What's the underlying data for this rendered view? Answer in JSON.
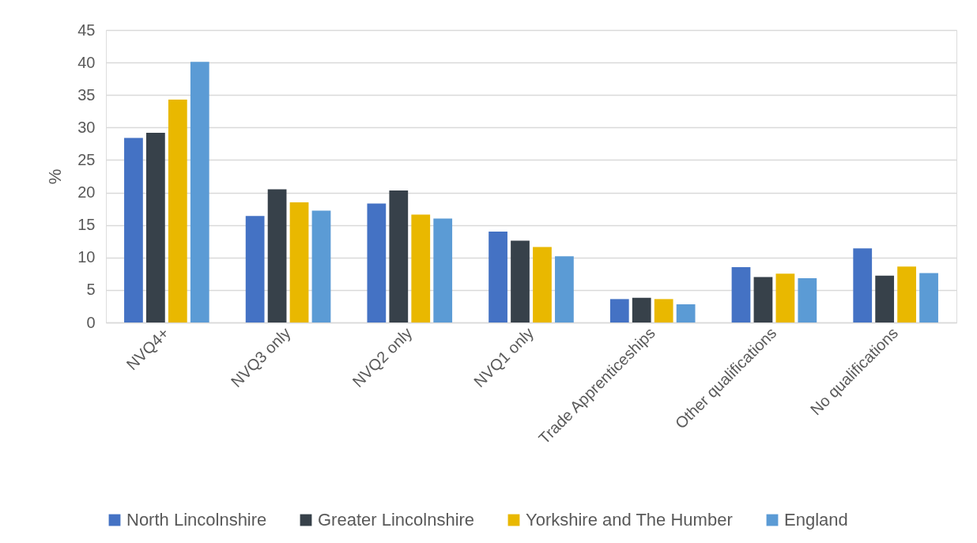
{
  "chart_data": {
    "type": "bar",
    "ylabel": "%",
    "categories": [
      "NVQ4+",
      "NVQ3 only",
      "NVQ2 only",
      "NVQ1 only",
      "Trade Apprenticeships",
      "Other qualifications",
      "No qualifications"
    ],
    "series": [
      {
        "name": "North Lincolnshire",
        "color": "#4472c4",
        "values": [
          28.4,
          16.4,
          18.3,
          14.0,
          3.6,
          8.5,
          11.4
        ]
      },
      {
        "name": "Greater Lincolnshire",
        "color": "#37414a",
        "values": [
          29.2,
          20.5,
          20.3,
          12.6,
          3.8,
          7.0,
          7.2
        ]
      },
      {
        "name": "Yorkshire and The Humber",
        "color": "#e9b800",
        "values": [
          34.3,
          18.5,
          16.6,
          11.6,
          3.6,
          7.5,
          8.6
        ]
      },
      {
        "name": "England",
        "color": "#5b9bd5",
        "values": [
          40.1,
          17.2,
          16.0,
          10.2,
          2.8,
          6.8,
          7.6
        ]
      }
    ],
    "ylim": [
      0,
      45
    ],
    "yticks": [
      0,
      5,
      10,
      15,
      20,
      25,
      30,
      35,
      40,
      45
    ],
    "grid": "y",
    "legend": "bottom"
  }
}
